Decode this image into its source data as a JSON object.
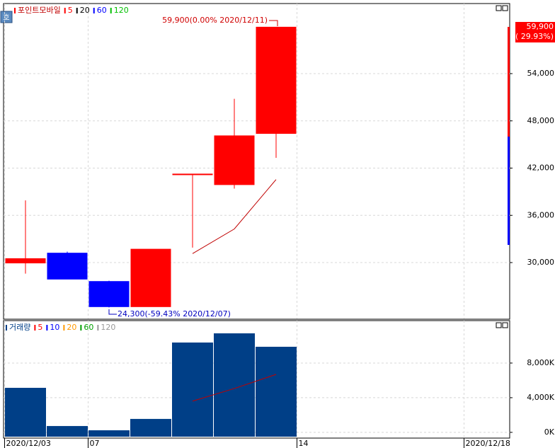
{
  "chart_data": [
    {
      "type": "candlestick",
      "title": "포인트모바일",
      "panel_icon": "호",
      "open": [
        29950,
        31200,
        27600,
        24400,
        41200,
        39900,
        46400,
        null,
        null,
        null,
        null,
        null
      ],
      "high": [
        37900,
        31400,
        27700,
        31700,
        41200,
        50800,
        59900,
        null,
        null,
        null,
        null,
        null
      ],
      "low": [
        28600,
        27900,
        24300,
        24400,
        31900,
        39400,
        43300,
        null,
        null,
        null,
        null,
        null
      ],
      "close": [
        30500,
        27900,
        24400,
        31700,
        41200,
        46100,
        59900,
        null,
        null,
        null,
        null,
        null
      ],
      "up_color": "#ff0000",
      "down_color": "#0000ff",
      "series": [
        {
          "name": "5",
          "color": "#ff0000",
          "values": [
            null,
            null,
            null,
            null,
            31140,
            34270,
            40550,
            null,
            null,
            null,
            null,
            null
          ]
        },
        {
          "name": "20",
          "color": "#000000",
          "values": [
            null,
            null,
            null,
            null,
            null,
            null,
            null,
            null,
            null,
            null,
            null,
            null
          ]
        },
        {
          "name": "60",
          "color": "#0000ff",
          "values": [
            null,
            null,
            null,
            null,
            null,
            null,
            null,
            null,
            null,
            null,
            null,
            null
          ]
        },
        {
          "name": "120",
          "color": "#00c000",
          "values": [
            null,
            null,
            null,
            null,
            null,
            null,
            null,
            null,
            null,
            null,
            null,
            null
          ]
        }
      ],
      "annotations": [
        "59,900(0.00% 2020/12/11)",
        "24,300(-59.43% 2020/12/07)"
      ],
      "last_price_label": "59,900",
      "last_change_label": "( 29.93%)",
      "ylim": [
        22900,
        62900
      ],
      "yticks": [
        {
          "value": 30000,
          "label": "30,000"
        },
        {
          "value": 36000,
          "label": "36,000"
        },
        {
          "value": 42000,
          "label": "42,000"
        },
        {
          "value": 48000,
          "label": "48,000"
        },
        {
          "value": 54000,
          "label": "54,000"
        }
      ],
      "grid": true
    },
    {
      "type": "bar",
      "title": "거래량",
      "color": "#003f87",
      "categories": [
        "2020/12/03",
        null,
        "07",
        null,
        null,
        null,
        null,
        "14",
        null,
        null,
        null,
        "2020/12/18"
      ],
      "values": [
        5140,
        730,
        240,
        1550,
        10370,
        11430,
        9880,
        null,
        null,
        null,
        null,
        null
      ],
      "series": [
        {
          "name": "5",
          "color": "#ff0000",
          "values": [
            null,
            null,
            null,
            null,
            3606,
            5060,
            6690,
            null,
            null,
            null,
            null,
            null
          ]
        },
        {
          "name": "10",
          "color": "#0000ff",
          "values": [
            null,
            null,
            null,
            null,
            null,
            null,
            null,
            null,
            null,
            null,
            null,
            null
          ]
        },
        {
          "name": "20",
          "color": "#ff9900",
          "values": [
            null,
            null,
            null,
            null,
            null,
            null,
            null,
            null,
            null,
            null,
            null,
            null
          ]
        },
        {
          "name": "60",
          "color": "#00a000",
          "values": [
            null,
            null,
            null,
            null,
            null,
            null,
            null,
            null,
            null,
            null,
            null,
            null
          ]
        },
        {
          "name": "120",
          "color": "#999999",
          "values": [
            null,
            null,
            null,
            null,
            null,
            null,
            null,
            null,
            null,
            null,
            null,
            null
          ]
        }
      ],
      "ylim": [
        -500,
        12900
      ],
      "yticks": [
        {
          "value": 0,
          "label": "0K"
        },
        {
          "value": 4000,
          "label": "4,000K"
        },
        {
          "value": 8000,
          "label": "8,000K"
        }
      ],
      "grid": true
    }
  ]
}
